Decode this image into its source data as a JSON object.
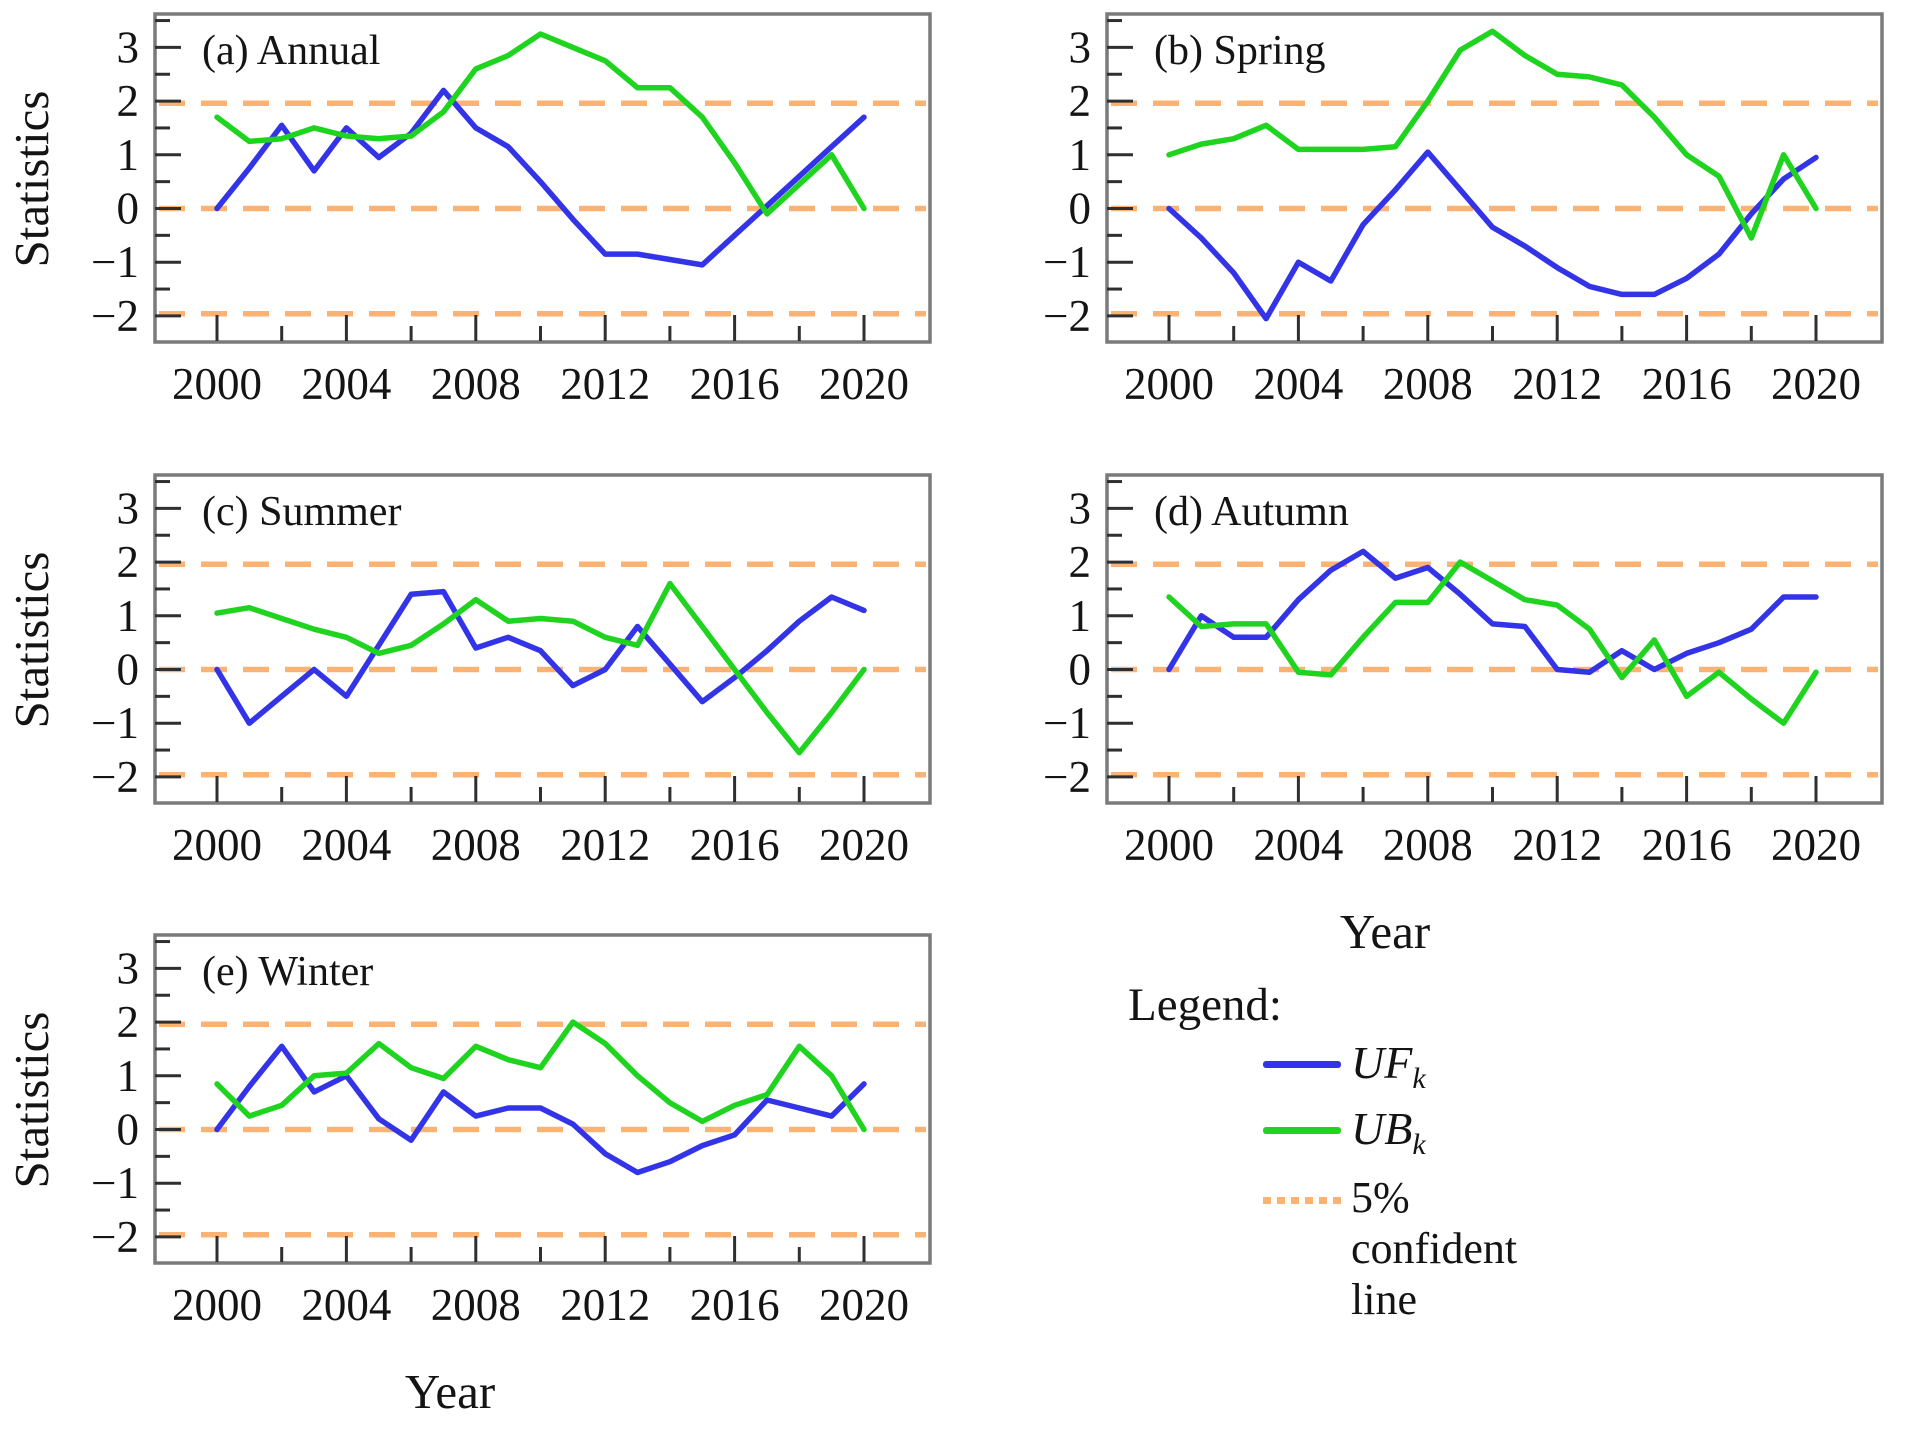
{
  "figure": {
    "y_axis_label": "Statistics",
    "x_axis_label": "Year"
  },
  "axis": {
    "y_tick_labels": [
      "3",
      "2",
      "1",
      "0",
      "−1",
      "−2"
    ],
    "y_tick_values": [
      3,
      2,
      1,
      0,
      -1,
      -2
    ],
    "y_minor_tick_values": [
      3.5,
      2.5,
      1.5,
      0.5,
      -0.5,
      -1.5
    ],
    "x_tick_labels": [
      "2000",
      "2004",
      "2008",
      "2012",
      "2016",
      "2020"
    ],
    "x_tick_values": [
      2000,
      2004,
      2008,
      2012,
      2016,
      2020
    ],
    "x_minor_tick_values": [
      2002,
      2006,
      2010,
      2014,
      2018
    ]
  },
  "colors": {
    "uf": "#3333e8",
    "ub": "#1fd41f",
    "confidence": "#fbb273",
    "frame": "#7a7a7a",
    "tick": "#2f2f2f",
    "text": "#141414"
  },
  "legend": {
    "heading": "Legend:",
    "uf_base": "UF",
    "uf_sub": "k",
    "ub_base": "UB",
    "ub_sub": "k",
    "confidence_label": "5% confident line"
  },
  "chart_data": [
    {
      "id": "a",
      "type": "line",
      "title": "(a) Annual",
      "x": [
        2000,
        2001,
        2002,
        2003,
        2004,
        2005,
        2006,
        2007,
        2008,
        2009,
        2010,
        2011,
        2012,
        2013,
        2014,
        2015,
        2016,
        2017,
        2018,
        2019,
        2020
      ],
      "xlim": [
        1998.1,
        2022.1
      ],
      "ylim": [
        -2.49,
        3.62
      ],
      "grid": false,
      "reference_lines": {
        "values": [
          1.96,
          0,
          -1.96
        ],
        "style": "dashed"
      },
      "series": [
        {
          "name": "UFk",
          "color_key": "uf",
          "values": [
            0.0,
            0.75,
            1.55,
            0.7,
            1.5,
            0.95,
            1.4,
            2.2,
            1.5,
            1.15,
            0.5,
            -0.2,
            -0.85,
            -0.85,
            -0.95,
            -1.05,
            -0.5,
            0.05,
            0.6,
            1.15,
            1.7
          ]
        },
        {
          "name": "UBk",
          "color_key": "ub",
          "values": [
            1.7,
            1.25,
            1.3,
            1.5,
            1.35,
            1.3,
            1.35,
            1.8,
            2.6,
            2.85,
            3.25,
            3.0,
            2.75,
            2.25,
            2.25,
            1.7,
            0.85,
            -0.1,
            0.45,
            1.0,
            0.0
          ]
        }
      ]
    },
    {
      "id": "b",
      "type": "line",
      "title": "(b) Spring",
      "x": [
        2000,
        2001,
        2002,
        2003,
        2004,
        2005,
        2006,
        2007,
        2008,
        2009,
        2010,
        2011,
        2012,
        2013,
        2014,
        2015,
        2016,
        2017,
        2018,
        2019,
        2020
      ],
      "xlim": [
        1998.1,
        2022.1
      ],
      "ylim": [
        -2.49,
        3.62
      ],
      "grid": false,
      "reference_lines": {
        "values": [
          1.96,
          0,
          -1.96
        ],
        "style": "dashed"
      },
      "series": [
        {
          "name": "UFk",
          "color_key": "uf",
          "values": [
            0.0,
            -0.55,
            -1.2,
            -2.05,
            -1.0,
            -1.35,
            -0.3,
            0.35,
            1.05,
            0.35,
            -0.35,
            -0.7,
            -1.1,
            -1.45,
            -1.6,
            -1.6,
            -1.3,
            -0.85,
            -0.1,
            0.55,
            0.95
          ]
        },
        {
          "name": "UBk",
          "color_key": "ub",
          "values": [
            1.0,
            1.2,
            1.3,
            1.55,
            1.1,
            1.1,
            1.1,
            1.15,
            2.0,
            2.95,
            3.3,
            2.85,
            2.5,
            2.45,
            2.3,
            1.7,
            1.0,
            0.6,
            -0.55,
            1.0,
            0.0
          ]
        }
      ]
    },
    {
      "id": "c",
      "type": "line",
      "title": "(c) Summer",
      "x": [
        2000,
        2001,
        2002,
        2003,
        2004,
        2005,
        2006,
        2007,
        2008,
        2009,
        2010,
        2011,
        2012,
        2013,
        2014,
        2015,
        2016,
        2017,
        2018,
        2019,
        2020
      ],
      "xlim": [
        1998.1,
        2022.1
      ],
      "ylim": [
        -2.49,
        3.62
      ],
      "grid": false,
      "reference_lines": {
        "values": [
          1.96,
          0,
          -1.96
        ],
        "style": "dashed"
      },
      "series": [
        {
          "name": "UFk",
          "color_key": "uf",
          "values": [
            0.0,
            -1.0,
            -0.5,
            0.0,
            -0.5,
            0.45,
            1.4,
            1.45,
            0.4,
            0.6,
            0.35,
            -0.3,
            0.0,
            0.8,
            0.1,
            -0.6,
            -0.15,
            0.35,
            0.9,
            1.35,
            1.1
          ]
        },
        {
          "name": "UBk",
          "color_key": "ub",
          "values": [
            1.05,
            1.15,
            0.95,
            0.75,
            0.6,
            0.3,
            0.45,
            0.85,
            1.3,
            0.9,
            0.95,
            0.9,
            0.6,
            0.45,
            1.6,
            0.8,
            0.0,
            -0.8,
            -1.55,
            -0.8,
            0.0
          ]
        }
      ]
    },
    {
      "id": "d",
      "type": "line",
      "title": "(d) Autumn",
      "x": [
        2000,
        2001,
        2002,
        2003,
        2004,
        2005,
        2006,
        2007,
        2008,
        2009,
        2010,
        2011,
        2012,
        2013,
        2014,
        2015,
        2016,
        2017,
        2018,
        2019,
        2020
      ],
      "xlim": [
        1998.1,
        2022.1
      ],
      "ylim": [
        -2.49,
        3.62
      ],
      "grid": false,
      "reference_lines": {
        "values": [
          1.96,
          0,
          -1.96
        ],
        "style": "dashed"
      },
      "series": [
        {
          "name": "UFk",
          "color_key": "uf",
          "values": [
            0.0,
            1.0,
            0.6,
            0.6,
            1.3,
            1.85,
            2.2,
            1.7,
            1.9,
            1.4,
            0.85,
            0.8,
            0.0,
            -0.05,
            0.35,
            0.0,
            0.3,
            0.5,
            0.75,
            1.35,
            1.35
          ]
        },
        {
          "name": "UBk",
          "color_key": "ub",
          "values": [
            1.35,
            0.8,
            0.85,
            0.85,
            -0.05,
            -0.1,
            0.6,
            1.25,
            1.25,
            2.0,
            1.65,
            1.3,
            1.2,
            0.75,
            -0.15,
            0.55,
            -0.5,
            -0.05,
            -0.55,
            -1.0,
            -0.05
          ]
        }
      ]
    },
    {
      "id": "e",
      "type": "line",
      "title": "(e) Winter",
      "x": [
        2000,
        2001,
        2002,
        2003,
        2004,
        2005,
        2006,
        2007,
        2008,
        2009,
        2010,
        2011,
        2012,
        2013,
        2014,
        2015,
        2016,
        2017,
        2018,
        2019,
        2020
      ],
      "xlim": [
        1998.1,
        2022.1
      ],
      "ylim": [
        -2.49,
        3.62
      ],
      "grid": false,
      "reference_lines": {
        "values": [
          1.96,
          0,
          -1.96
        ],
        "style": "dashed"
      },
      "series": [
        {
          "name": "UFk",
          "color_key": "uf",
          "values": [
            0.0,
            0.8,
            1.55,
            0.7,
            1.0,
            0.2,
            -0.2,
            0.7,
            0.25,
            0.4,
            0.4,
            0.1,
            -0.45,
            -0.8,
            -0.6,
            -0.3,
            -0.1,
            0.55,
            0.4,
            0.25,
            0.85
          ]
        },
        {
          "name": "UBk",
          "color_key": "ub",
          "values": [
            0.85,
            0.25,
            0.45,
            1.0,
            1.05,
            1.6,
            1.15,
            0.95,
            1.55,
            1.3,
            1.15,
            2.0,
            1.6,
            1.0,
            0.5,
            0.15,
            0.45,
            0.65,
            1.55,
            1.0,
            0.0
          ]
        }
      ]
    }
  ]
}
